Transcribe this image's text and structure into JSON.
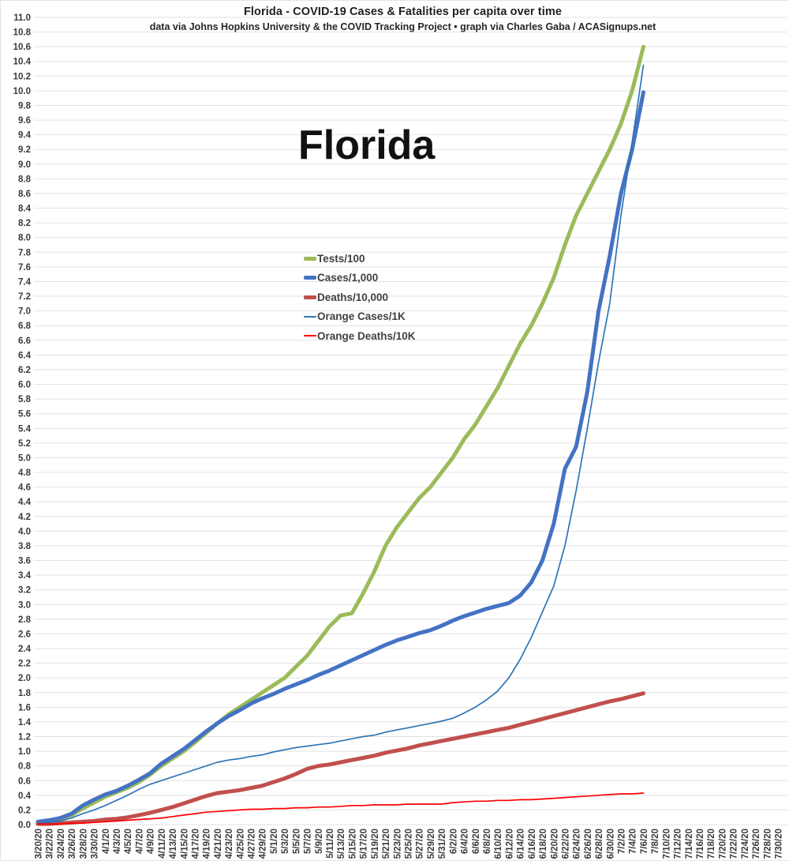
{
  "header": {
    "title": "Florida - COVID-19 Cases & Fatalities per capita over time",
    "subtitle": "data via Johns Hopkins University & the COVID Tracking Project • graph via Charles Gaba / ACASignups.net"
  },
  "watermark": "Florida",
  "chart_data": {
    "type": "line",
    "title": "Florida - COVID-19 Cases & Fatalities per capita over time",
    "xlabel": "",
    "ylabel": "",
    "ylim": [
      0,
      11
    ],
    "ytick_step": 0.2,
    "grid": "horizontal",
    "gridline_color": "#e2e2e2",
    "axis_label_color": "#3a3a3a",
    "legend_position": "inside-left-middle",
    "data_end_note": "plotted data ends near 7/6/20; axis extends to 7/30/20",
    "categories": [
      "3/20/20",
      "3/22/20",
      "3/24/20",
      "3/26/20",
      "3/28/20",
      "3/30/20",
      "4/1/20",
      "4/3/20",
      "4/5/20",
      "4/7/20",
      "4/9/20",
      "4/11/20",
      "4/13/20",
      "4/15/20",
      "4/17/20",
      "4/19/20",
      "4/21/20",
      "4/23/20",
      "4/25/20",
      "4/27/20",
      "4/29/20",
      "5/1/20",
      "5/3/20",
      "5/5/20",
      "5/7/20",
      "5/9/20",
      "5/11/20",
      "5/13/20",
      "5/15/20",
      "5/17/20",
      "5/19/20",
      "5/21/20",
      "5/23/20",
      "5/25/20",
      "5/27/20",
      "5/29/20",
      "5/31/20",
      "6/2/20",
      "6/4/20",
      "6/6/20",
      "6/8/20",
      "6/10/20",
      "6/12/20",
      "6/14/20",
      "6/16/20",
      "6/18/20",
      "6/20/20",
      "6/22/20",
      "6/24/20",
      "6/26/20",
      "6/28/20",
      "6/30/20",
      "7/2/20",
      "7/4/20",
      "7/6/20",
      "7/8/20",
      "7/10/20",
      "7/12/20",
      "7/14/20",
      "7/16/20",
      "7/18/20",
      "7/20/20",
      "7/22/20",
      "7/24/20",
      "7/26/20",
      "7/28/20",
      "7/30/20"
    ],
    "series": [
      {
        "name": "Tests/100",
        "color": "#9BBB59",
        "width": 5,
        "values": [
          0.03,
          0.05,
          0.08,
          0.13,
          0.22,
          0.3,
          0.38,
          0.44,
          0.5,
          0.58,
          0.68,
          0.8,
          0.9,
          1.0,
          1.12,
          1.25,
          1.38,
          1.5,
          1.6,
          1.7,
          1.8,
          1.9,
          2.0,
          2.15,
          2.3,
          2.5,
          2.7,
          2.85,
          2.88,
          3.15,
          3.45,
          3.8,
          4.05,
          4.25,
          4.45,
          4.6,
          4.8,
          5.0,
          5.25,
          5.45,
          5.7,
          5.95,
          6.25,
          6.55,
          6.8,
          7.1,
          7.45,
          7.9,
          8.3,
          8.6,
          8.9,
          9.2,
          9.55,
          10.0,
          10.6
        ]
      },
      {
        "name": "Cases/1,000",
        "color": "#4472C4",
        "width": 5,
        "values": [
          0.04,
          0.06,
          0.09,
          0.15,
          0.26,
          0.34,
          0.41,
          0.46,
          0.53,
          0.61,
          0.7,
          0.83,
          0.93,
          1.03,
          1.15,
          1.27,
          1.38,
          1.48,
          1.56,
          1.65,
          1.72,
          1.78,
          1.85,
          1.91,
          1.97,
          2.04,
          2.1,
          2.17,
          2.24,
          2.31,
          2.38,
          2.45,
          2.51,
          2.56,
          2.61,
          2.65,
          2.71,
          2.78,
          2.84,
          2.89,
          2.94,
          2.98,
          3.02,
          3.12,
          3.3,
          3.6,
          4.1,
          4.85,
          5.15,
          5.9,
          7.0,
          7.75,
          8.6,
          9.2,
          9.98
        ]
      },
      {
        "name": "Deaths/10,000",
        "color": "#C0504D",
        "width": 5,
        "values": [
          0.01,
          0.01,
          0.02,
          0.03,
          0.04,
          0.05,
          0.07,
          0.08,
          0.1,
          0.13,
          0.16,
          0.2,
          0.24,
          0.29,
          0.34,
          0.39,
          0.43,
          0.45,
          0.47,
          0.5,
          0.53,
          0.58,
          0.63,
          0.69,
          0.76,
          0.8,
          0.82,
          0.85,
          0.88,
          0.91,
          0.94,
          0.98,
          1.01,
          1.04,
          1.08,
          1.11,
          1.14,
          1.17,
          1.2,
          1.23,
          1.26,
          1.29,
          1.32,
          1.36,
          1.4,
          1.44,
          1.48,
          1.52,
          1.56,
          1.6,
          1.64,
          1.68,
          1.71,
          1.75,
          1.79
        ]
      },
      {
        "name": "Orange Cases/1K",
        "color": "#2E75B6",
        "width": 1.7,
        "values": [
          0.02,
          0.03,
          0.05,
          0.09,
          0.15,
          0.2,
          0.26,
          0.33,
          0.4,
          0.48,
          0.55,
          0.6,
          0.65,
          0.7,
          0.75,
          0.8,
          0.85,
          0.88,
          0.9,
          0.93,
          0.95,
          0.99,
          1.02,
          1.05,
          1.07,
          1.09,
          1.11,
          1.14,
          1.17,
          1.2,
          1.22,
          1.26,
          1.29,
          1.32,
          1.35,
          1.38,
          1.41,
          1.45,
          1.52,
          1.6,
          1.7,
          1.82,
          2.0,
          2.25,
          2.55,
          2.9,
          3.25,
          3.8,
          4.55,
          5.4,
          6.3,
          7.1,
          8.3,
          9.3,
          10.35
        ]
      },
      {
        "name": "Orange Deaths/10K",
        "color": "#FF0000",
        "width": 1.7,
        "values": [
          0.01,
          0.01,
          0.01,
          0.02,
          0.02,
          0.03,
          0.04,
          0.05,
          0.06,
          0.07,
          0.08,
          0.09,
          0.11,
          0.13,
          0.15,
          0.17,
          0.18,
          0.19,
          0.2,
          0.21,
          0.21,
          0.22,
          0.22,
          0.23,
          0.23,
          0.24,
          0.24,
          0.25,
          0.26,
          0.26,
          0.27,
          0.27,
          0.27,
          0.28,
          0.28,
          0.28,
          0.28,
          0.3,
          0.31,
          0.32,
          0.32,
          0.33,
          0.33,
          0.34,
          0.34,
          0.35,
          0.36,
          0.37,
          0.38,
          0.39,
          0.4,
          0.41,
          0.42,
          0.42,
          0.43
        ]
      }
    ]
  }
}
